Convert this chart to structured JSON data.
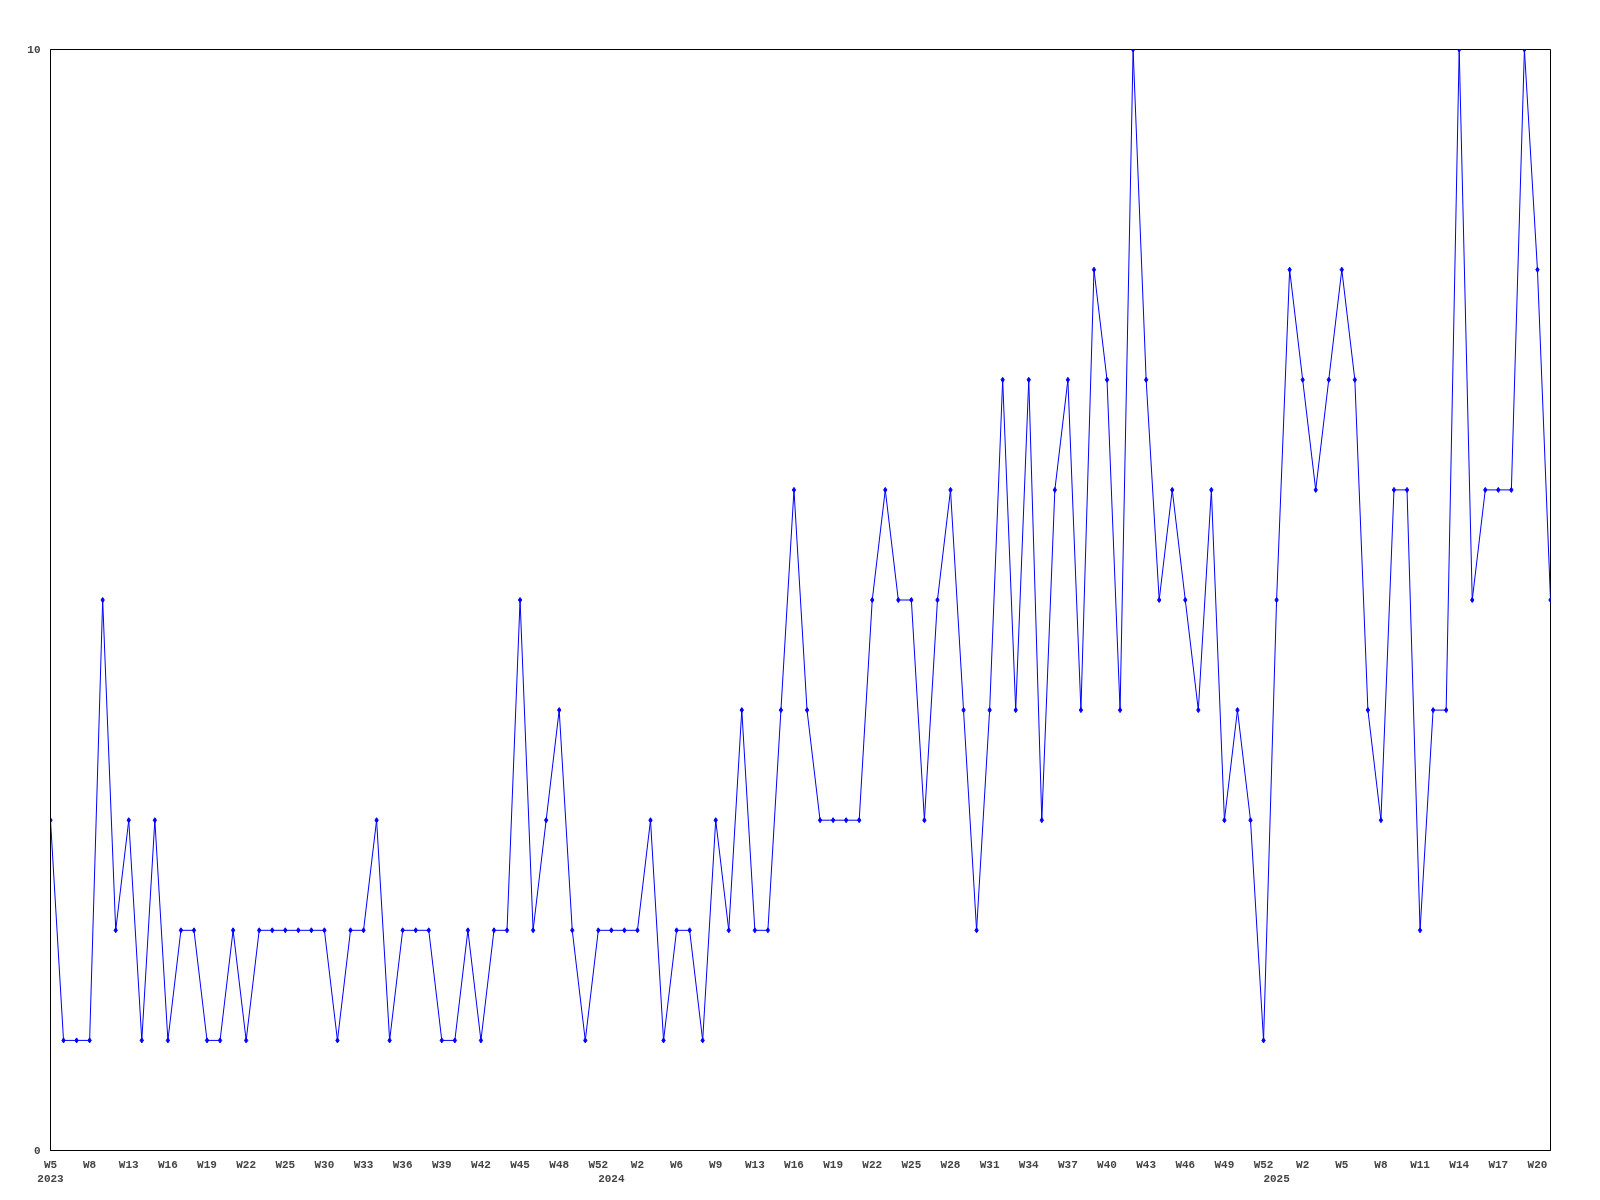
{
  "chart_data": {
    "type": "line",
    "categories": [
      "W5\n2023",
      null,
      null,
      "W8",
      null,
      null,
      "W13",
      null,
      null,
      "W16",
      null,
      null,
      "W19",
      null,
      null,
      "W22",
      null,
      null,
      "W25",
      null,
      null,
      "W30",
      null,
      null,
      "W33",
      null,
      null,
      "W36",
      null,
      null,
      "W39",
      null,
      null,
      "W42",
      null,
      null,
      "W45",
      null,
      null,
      "W48",
      null,
      null,
      "W52",
      "\n2024",
      null,
      "W2",
      null,
      null,
      "W6",
      null,
      null,
      "W9",
      null,
      null,
      "W13",
      null,
      null,
      "W16",
      null,
      null,
      "W19",
      null,
      null,
      "W22",
      null,
      null,
      "W25",
      null,
      null,
      "W28",
      null,
      null,
      "W31",
      null,
      null,
      "W34",
      null,
      null,
      "W37",
      null,
      null,
      "W40",
      null,
      null,
      "W43",
      null,
      null,
      "W46",
      null,
      null,
      "W49",
      null,
      null,
      "W52",
      "\n2025",
      null,
      "W2",
      null,
      null,
      "W5",
      null,
      null,
      "W8",
      null,
      null,
      "W11",
      null,
      null,
      "W14",
      null,
      null,
      "W17",
      null,
      null,
      "W20",
      null
    ],
    "series": [
      {
        "color": "#0000ff",
        "values": [
          3,
          1,
          1,
          1,
          5,
          2,
          3,
          1,
          3,
          1,
          2,
          2,
          1,
          1,
          2,
          1,
          2,
          2,
          2,
          2,
          2,
          2,
          1,
          2,
          2,
          3,
          1,
          2,
          2,
          2,
          1,
          1,
          2,
          1,
          2,
          2,
          5,
          2,
          3,
          4,
          2,
          1,
          2,
          2,
          2,
          2,
          3,
          1,
          2,
          2,
          1,
          3,
          2,
          4,
          2,
          2,
          4,
          6,
          4,
          3,
          3,
          3,
          3,
          5,
          6,
          5,
          5,
          3,
          5,
          6,
          4,
          2,
          4,
          7,
          4,
          7,
          3,
          6,
          7,
          4,
          8,
          7,
          4,
          10,
          7,
          5,
          6,
          5,
          4,
          6,
          3,
          4,
          3,
          1,
          5,
          8,
          7,
          6,
          7,
          8,
          7,
          4,
          3,
          6,
          6,
          2,
          4,
          4,
          10,
          5,
          6,
          6,
          6,
          10,
          8,
          5
        ]
      }
    ],
    "ylim": [
      0,
      10
    ],
    "yticks": [
      0,
      10
    ],
    "grid": false,
    "marker": "diamond",
    "line_style": "solid"
  }
}
